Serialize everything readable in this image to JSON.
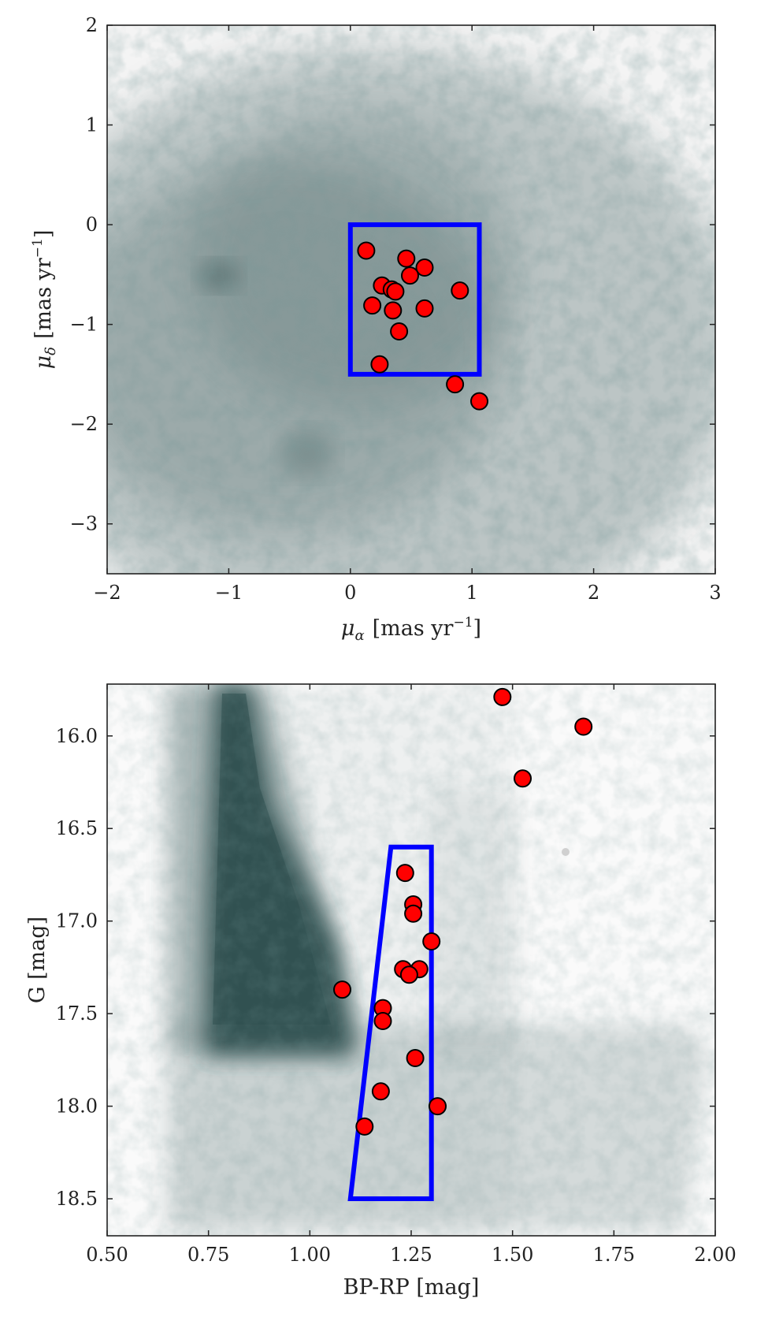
{
  "colors": {
    "background_density": "#2f4f4f",
    "point_fill": "#ff0000",
    "point_edge": "#000000",
    "selection_box": "#0000ff",
    "axes": "#222222"
  },
  "chart_data": [
    {
      "type": "scatter",
      "xlabel_main": "μ",
      "xlabel_sub": "α",
      "xlabel_unit": "[mas yr",
      "xlabel_exp": "−1",
      "xlabel_close": "]",
      "ylabel_main": "μ",
      "ylabel_sub": "δ",
      "ylabel_unit": "[mas yr",
      "ylabel_exp": "−1",
      "ylabel_close": "]",
      "xlim": [
        -2,
        3
      ],
      "ylim": [
        -3.5,
        2
      ],
      "xticks": [
        -2,
        -1,
        0,
        1,
        2,
        3
      ],
      "xtick_labels": [
        "−2",
        "−1",
        "0",
        "1",
        "2",
        "3"
      ],
      "yticks": [
        -3,
        -2,
        -1,
        0,
        1,
        2
      ],
      "ytick_labels": [
        "−3",
        "−2",
        "−1",
        "0",
        "1",
        "2"
      ],
      "grid": false,
      "background": "gray density of field stars",
      "selection_polygon": [
        [
          0,
          0
        ],
        [
          1.06,
          0
        ],
        [
          1.06,
          -1.5
        ],
        [
          0,
          -1.5
        ]
      ],
      "series": [
        {
          "points": [
            [
              0.13,
              -0.26
            ],
            [
              0.46,
              -0.34
            ],
            [
              0.61,
              -0.43
            ],
            [
              0.49,
              -0.51
            ],
            [
              0.26,
              -0.61
            ],
            [
              0.34,
              -0.65
            ],
            [
              0.37,
              -0.67
            ],
            [
              0.9,
              -0.66
            ],
            [
              0.18,
              -0.81
            ],
            [
              0.61,
              -0.84
            ],
            [
              0.35,
              -0.86
            ],
            [
              0.4,
              -1.07
            ],
            [
              0.24,
              -1.4
            ],
            [
              0.86,
              -1.6
            ],
            [
              1.06,
              -1.77
            ]
          ]
        }
      ]
    },
    {
      "type": "scatter",
      "xlabel": "BP-RP [mag]",
      "ylabel": "G [mag]",
      "xlim": [
        0.5,
        2.0
      ],
      "ylim": [
        18.7,
        15.72
      ],
      "y_inverted": true,
      "xticks": [
        0.5,
        0.75,
        1.0,
        1.25,
        1.5,
        1.75,
        2.0
      ],
      "xtick_labels": [
        "0.50",
        "0.75",
        "1.00",
        "1.25",
        "1.50",
        "1.75",
        "2.00"
      ],
      "yticks": [
        16.0,
        16.5,
        17.0,
        17.5,
        18.0,
        18.5
      ],
      "ytick_labels": [
        "16.0",
        "16.5",
        "17.0",
        "17.5",
        "18.0",
        "18.5"
      ],
      "grid": false,
      "background": "gray density of field stars",
      "selection_polygon": [
        [
          1.2,
          16.6
        ],
        [
          1.3,
          16.6
        ],
        [
          1.3,
          18.5
        ],
        [
          1.1,
          18.5
        ]
      ],
      "series": [
        {
          "points": [
            [
              1.475,
              15.79
            ],
            [
              1.675,
              15.95
            ],
            [
              1.525,
              16.23
            ],
            [
              1.235,
              16.74
            ],
            [
              1.255,
              16.91
            ],
            [
              1.255,
              16.96
            ],
            [
              1.3,
              17.11
            ],
            [
              1.23,
              17.26
            ],
            [
              1.27,
              17.26
            ],
            [
              1.245,
              17.29
            ],
            [
              1.08,
              17.37
            ],
            [
              1.18,
              17.47
            ],
            [
              1.18,
              17.54
            ],
            [
              1.26,
              17.74
            ],
            [
              1.175,
              17.92
            ],
            [
              1.315,
              18.0
            ],
            [
              1.135,
              18.11
            ]
          ]
        }
      ]
    }
  ]
}
